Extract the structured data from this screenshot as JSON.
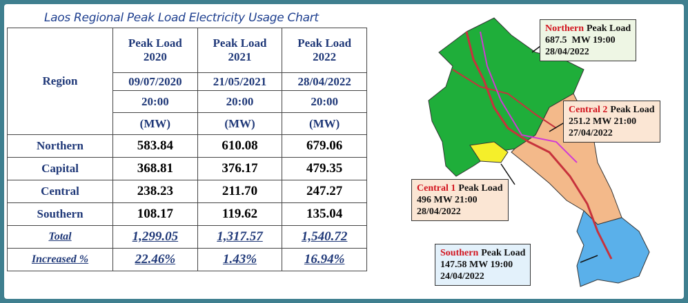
{
  "title": "Laos Regional Peak Load Electricity Usage Chart",
  "table": {
    "region_header": "Region",
    "peak_labels": [
      "Peak Load",
      "Peak Load",
      "Peak Load"
    ],
    "years": [
      "2020",
      "2021",
      "2022"
    ],
    "dates": [
      "09/07/2020",
      "21/05/2021",
      "28/04/2022"
    ],
    "times": [
      "20:00",
      "20:00",
      "20:00"
    ],
    "units": [
      "(MW)",
      "(MW)",
      "(MW)"
    ],
    "rows": [
      [
        "Northern",
        "583.84",
        "610.08",
        "679.06"
      ],
      [
        "Capital",
        "368.81",
        "376.17",
        "479.35"
      ],
      [
        "Central",
        "238.23",
        "211.70",
        "247.27"
      ],
      [
        "Southern",
        "108.17",
        "119.62",
        "135.04"
      ]
    ],
    "total": [
      "Total",
      "1,299.05",
      "1,317.57",
      "1,540.72"
    ],
    "increase": [
      "Increased %",
      "22.46%",
      "1.43%",
      "16.94%"
    ]
  },
  "callouts": [
    {
      "region": "Northern",
      "label": "Peak Load",
      "value": "687.5  MW 19:00",
      "date": "28/04/2022"
    },
    {
      "region": "Central 2",
      "label": "Peak Load",
      "value": "251.2 MW 21:00",
      "date": "27/04/2022"
    },
    {
      "region": "Central 1",
      "label": "Peak Load",
      "value": "496 MW 21:00",
      "date": "28/04/2022"
    },
    {
      "region": "Southern",
      "label": "Peak Load",
      "value": "147.58 MW 19:00",
      "date": "24/04/2022"
    }
  ]
}
